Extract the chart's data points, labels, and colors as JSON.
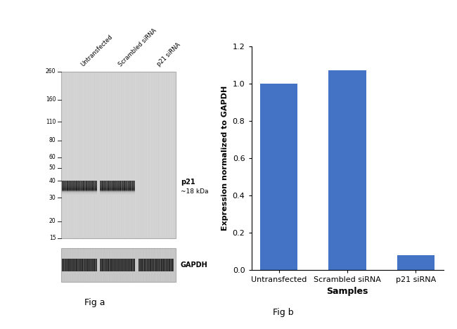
{
  "bar_categories": [
    "Untransfected",
    "Scrambled siRNA",
    "p21 siRNA"
  ],
  "bar_values": [
    1.0,
    1.07,
    0.08
  ],
  "bar_color": "#4472C4",
  "ylabel_bar": "Expression normalized to GAPDH",
  "xlabel_bar": "Samples",
  "ylim_bar": [
    0,
    1.2
  ],
  "yticks_bar": [
    0,
    0.2,
    0.4,
    0.6,
    0.8,
    1.0,
    1.2
  ],
  "fig_label_a": "Fig a",
  "fig_label_b": "Fig b",
  "wb_ladder_labels": [
    "260",
    "160",
    "110",
    "80",
    "60",
    "50",
    "40",
    "30",
    "20",
    "15"
  ],
  "wb_band1_label": "p21",
  "wb_band1_sublabel": "~18 kDa",
  "wb_band2_label": "GAPDH",
  "background_color": "#ffffff",
  "wb_col_labels": [
    "Untransfected",
    "Scrambled siRNA",
    "p21 siRNA"
  ]
}
